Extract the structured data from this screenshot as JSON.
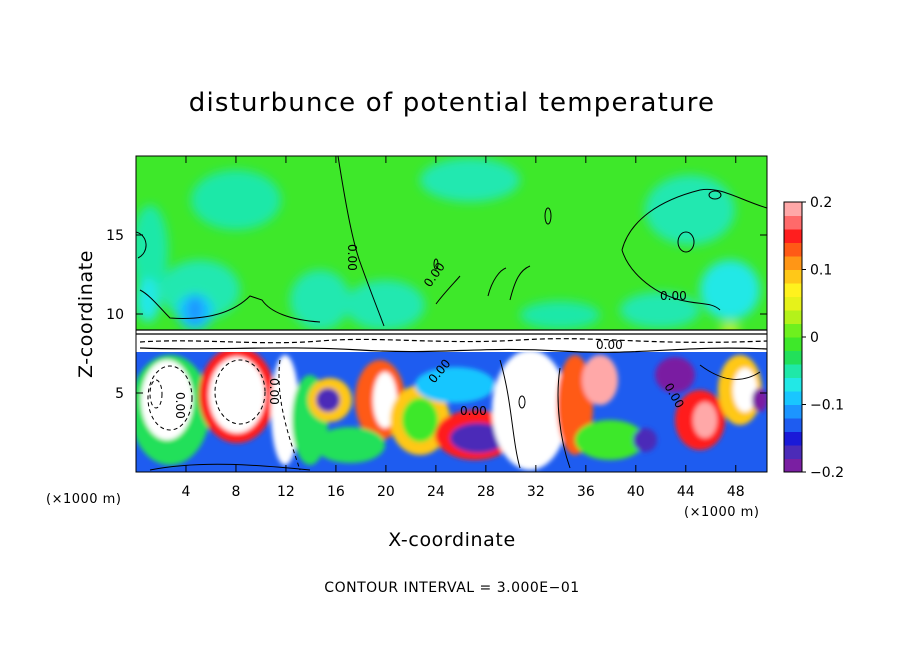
{
  "chart_data": {
    "type": "heatmap",
    "title": "disturbunce of potential temperature",
    "xlabel": "X-coordinate",
    "ylabel": "Z-coordinate",
    "x_unit_left": "(×1000 m)",
    "x_unit_right": "(×1000 m)",
    "xlim": [
      0,
      50.5
    ],
    "ylim": [
      0,
      20
    ],
    "xticks": [
      4,
      8,
      12,
      16,
      20,
      24,
      28,
      32,
      36,
      40,
      44,
      48
    ],
    "yticks": [
      5,
      10,
      15
    ],
    "colorbar": {
      "range": [
        -0.2,
        0.2
      ],
      "ticks": [
        "0.2",
        "0.1",
        "0",
        "−0.1",
        "−0.2"
      ],
      "colors": [
        "#7a1fa2",
        "#4b2bb8",
        "#1a1ad8",
        "#1e5cf0",
        "#1c95ff",
        "#19c6ff",
        "#22e8e6",
        "#1fe8a8",
        "#22e05a",
        "#3ee82a",
        "#6ef01e",
        "#b4f21a",
        "#e6f21a",
        "#fff21e",
        "#ffc818",
        "#ff9616",
        "#ff5a16",
        "#ff1e1e",
        "#ff6a6a",
        "#ffa8a8"
      ]
    },
    "contour_labels": [
      "0.00",
      "0.00",
      "0.00",
      "0.00",
      "0.00",
      "0.00",
      "0.00",
      "0.00",
      "0.00"
    ],
    "contour_interval": "CONTOUR INTERVAL = 3.000E−01"
  }
}
